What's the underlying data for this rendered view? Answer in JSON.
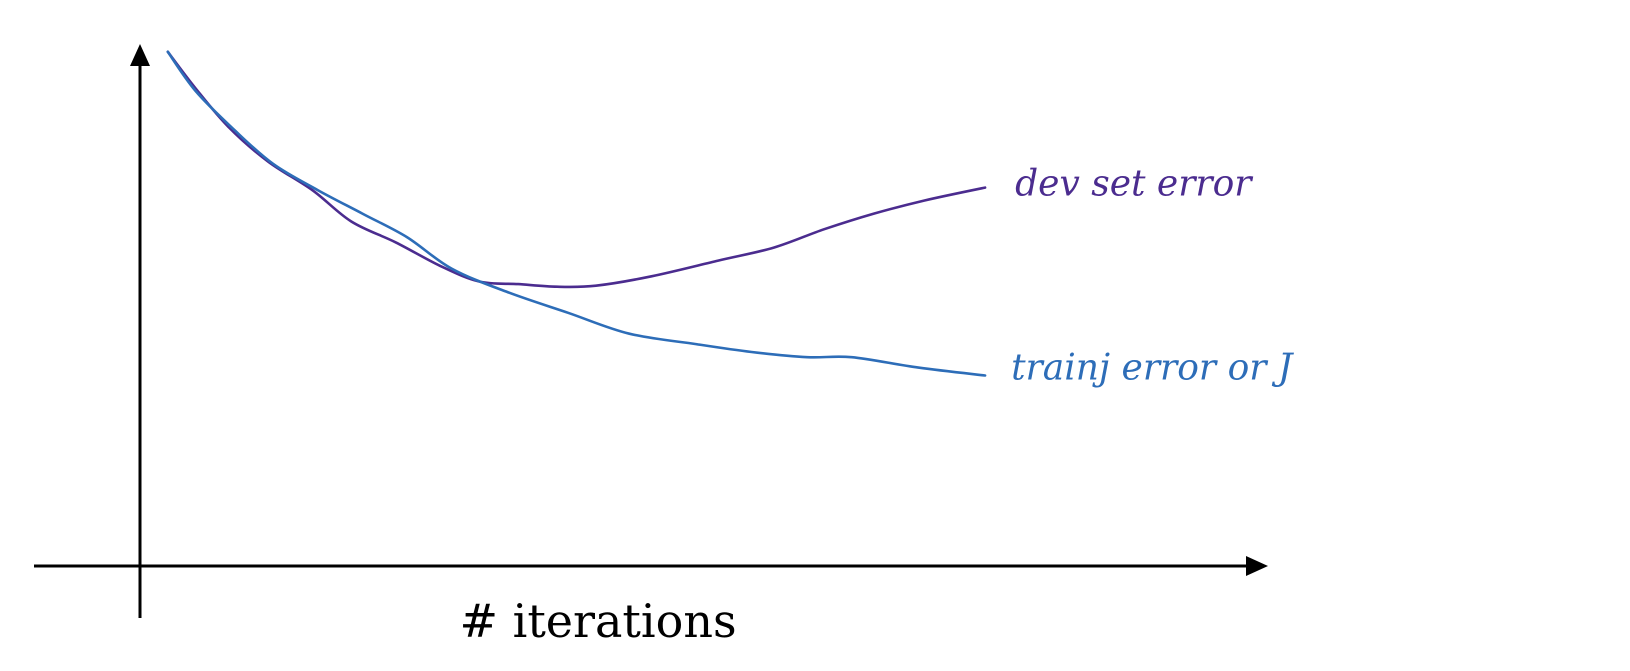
{
  "chart_data": {
    "type": "line",
    "title": "",
    "xlabel": "# iterations",
    "ylabel": "",
    "x_ticks": [],
    "y_ticks": [],
    "grid": false,
    "legend": "inline labels at line ends",
    "xlim": [
      0,
      100
    ],
    "ylim": [
      0,
      100
    ],
    "series": [
      {
        "name": "dev set error",
        "color": "#4b2c8f",
        "label_color": "#4b2c8f",
        "points": [
          [
            2.5,
            98.5
          ],
          [
            5.0,
            91.5
          ],
          [
            8.0,
            84.0
          ],
          [
            11.5,
            77.5
          ],
          [
            15.5,
            72.0
          ],
          [
            19.0,
            66.0
          ],
          [
            23.0,
            62.0
          ],
          [
            27.0,
            57.5
          ],
          [
            30.5,
            54.5
          ],
          [
            34.0,
            54.0
          ],
          [
            37.5,
            53.5
          ],
          [
            41.0,
            53.7
          ],
          [
            46.0,
            55.5
          ],
          [
            52.0,
            58.5
          ],
          [
            57.0,
            61.0
          ],
          [
            61.5,
            64.5
          ],
          [
            66.0,
            67.5
          ],
          [
            70.5,
            70.0
          ],
          [
            76.0,
            72.5
          ]
        ]
      },
      {
        "name": "trainj error or J",
        "color": "#2d6db8",
        "label_color": "#2d6db8",
        "points": [
          [
            2.5,
            98.5
          ],
          [
            5.0,
            91.0
          ],
          [
            8.5,
            83.5
          ],
          [
            12.0,
            77.0
          ],
          [
            16.0,
            72.0
          ],
          [
            20.0,
            67.5
          ],
          [
            24.0,
            63.0
          ],
          [
            28.0,
            57.0
          ],
          [
            33.0,
            52.5
          ],
          [
            38.5,
            48.5
          ],
          [
            44.0,
            44.5
          ],
          [
            50.0,
            42.5
          ],
          [
            55.0,
            41.0
          ],
          [
            60.0,
            40.0
          ],
          [
            64.0,
            40.0
          ],
          [
            70.0,
            38.0
          ],
          [
            76.0,
            36.5
          ]
        ]
      }
    ]
  }
}
